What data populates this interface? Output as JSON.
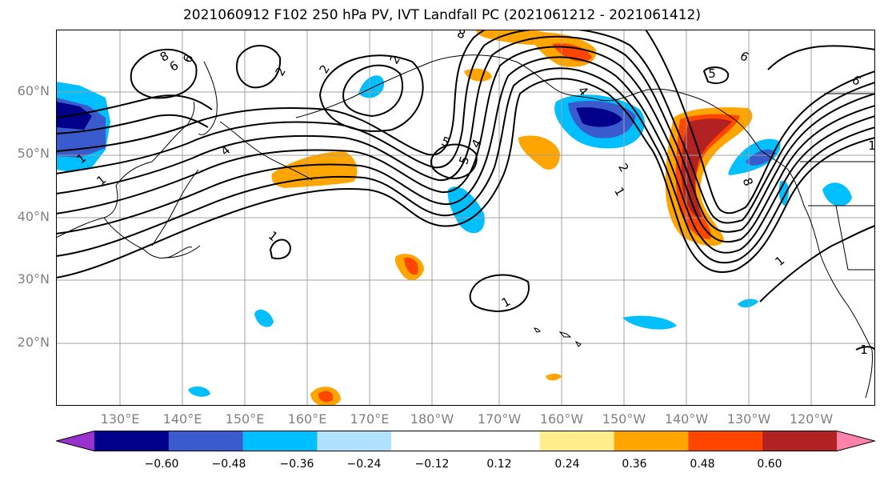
{
  "title": "2021060912 F102 250 hPa PV, IVT Landfall PC (2021061212 - 2021061412)",
  "latitude_labels": [
    "60°N",
    "50°N",
    "40°N",
    "30°N",
    "20°N"
  ],
  "longitude_labels": [
    "130°E",
    "140°E",
    "150°E",
    "160°E",
    "170°E",
    "180°W",
    "170°W",
    "160°W",
    "150°W",
    "140°W",
    "130°W",
    "120°W"
  ],
  "contour_labels": [
    "8",
    "6",
    "5",
    "4",
    "2",
    "1",
    "1",
    "1",
    "1",
    "2",
    "4",
    "5",
    "6",
    "8",
    "6",
    "4",
    "2",
    "1",
    "1",
    "5",
    "6",
    "8",
    "2",
    "1",
    "1"
  ],
  "colorbar": {
    "ticks": [
      "−0.60",
      "−0.48",
      "−0.36",
      "−0.24",
      "−0.12",
      "0.12",
      "0.24",
      "0.36",
      "0.48",
      "0.60"
    ],
    "colors": [
      "#9932cc",
      "#00008b",
      "#3a5bcd",
      "#00bfff",
      "#b0e2ff",
      "#ffffff",
      "#ffffff",
      "#ffec8b",
      "#ffa500",
      "#ff4500",
      "#b22222",
      "#ff82ab"
    ]
  },
  "colors": {
    "positive_strong": "#b22222",
    "positive_mid": "#ff4500",
    "positive_low": "#ffa500",
    "positive_faint": "#ffec8b",
    "negative_strong": "#00008b",
    "negative_mid": "#3a5bcd",
    "negative_low": "#00bfff",
    "negative_faint": "#b0e2ff",
    "contour": "#000000",
    "coastline": "#000000",
    "gridline": "#a0a0a0"
  }
}
